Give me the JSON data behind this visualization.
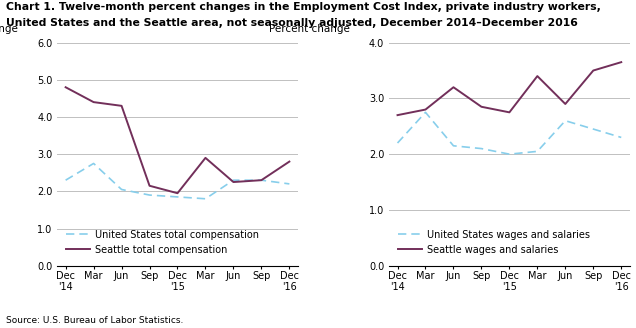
{
  "title_line1": "Chart 1. Twelve-month percent changes in the Employment Cost Index, private industry workers,",
  "title_line2": "United States and the Seattle area, not seasonally adjusted, December 2014–December 2016",
  "source": "Source: U.S. Bureau of Labor Statistics.",
  "x_labels": [
    "Dec\n'14",
    "Mar",
    "Jun",
    "Sep",
    "Dec\n'15",
    "Mar",
    "Jun",
    "Sep",
    "Dec\n'16"
  ],
  "left_chart": {
    "ylabel": "Percent change",
    "ylim": [
      0.0,
      6.0
    ],
    "yticks": [
      0.0,
      1.0,
      2.0,
      3.0,
      4.0,
      5.0,
      6.0
    ],
    "us_total_comp": [
      2.3,
      2.75,
      2.05,
      1.9,
      1.85,
      1.8,
      2.3,
      2.3,
      2.2
    ],
    "seattle_total_comp": [
      4.8,
      4.4,
      4.3,
      2.15,
      1.95,
      2.9,
      2.25,
      2.3,
      2.8
    ],
    "legend1": "United States total compensation",
    "legend2": "Seattle total compensation"
  },
  "right_chart": {
    "ylabel": "Percent change",
    "ylim": [
      0.0,
      4.0
    ],
    "yticks": [
      0.0,
      1.0,
      2.0,
      3.0,
      4.0
    ],
    "us_wages": [
      2.2,
      2.75,
      2.15,
      2.1,
      2.0,
      2.05,
      2.6,
      2.45,
      2.3
    ],
    "seattle_wages": [
      2.7,
      2.8,
      3.2,
      2.85,
      2.75,
      3.4,
      2.9,
      3.5,
      3.65
    ],
    "legend1": "United States wages and salaries",
    "legend2": "Seattle wages and salaries"
  },
  "us_color": "#87CEEB",
  "seattle_color": "#722F5A",
  "grid_color": "#C0C0C0",
  "title_fontsize": 7.8,
  "label_fontsize": 7.5,
  "tick_fontsize": 7.0,
  "legend_fontsize": 7.0,
  "source_fontsize": 6.5
}
